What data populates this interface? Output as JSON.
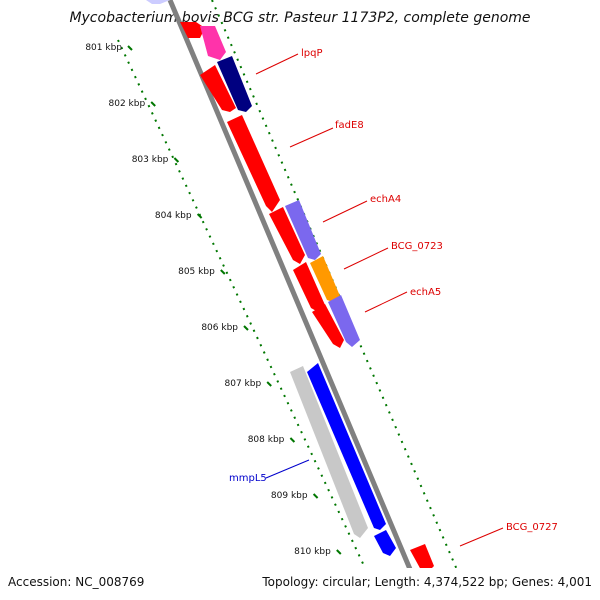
{
  "title": "Mycobacterium bovis BCG str. Pasteur 1173P2, complete genome",
  "footer": {
    "accession": "Accession: NC_008769",
    "summary": "Topology: circular; Length: 4,374,522 bp; Genes: 4,001"
  },
  "ruler": {
    "unit": "kbp",
    "ticks": [
      "801 kbp",
      "802 kbp",
      "803 kbp",
      "804 kbp",
      "805 kbp",
      "806 kbp",
      "807 kbp",
      "808 kbp",
      "809 kbp",
      "810 kbp"
    ]
  },
  "colors": {
    "red": "#ff0000",
    "pink": "#ff33aa",
    "navy": "#000080",
    "purple": "#7b68ee",
    "orange": "#ff9900",
    "blue": "#0000ff",
    "gray": "#c8c8c8",
    "axis": "#808080",
    "tick": "#007700",
    "label_red": "#dd0000",
    "label_blue": "#0000cc"
  },
  "genes": [
    {
      "name": "lpqP",
      "color": "#dd0000"
    },
    {
      "name": "fadE8",
      "color": "#dd0000"
    },
    {
      "name": "echA4",
      "color": "#dd0000"
    },
    {
      "name": "BCG_0723",
      "color": "#dd0000"
    },
    {
      "name": "echA5",
      "color": "#dd0000"
    },
    {
      "name": "mmpL5",
      "color": "#0000cc"
    },
    {
      "name": "BCG_0727",
      "color": "#dd0000"
    }
  ]
}
